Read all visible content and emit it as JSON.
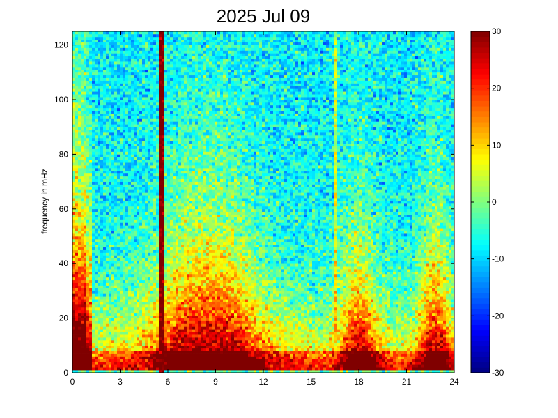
{
  "chart_data": {
    "type": "heatmap",
    "title": "2025 Jul 09",
    "xlabel": "",
    "ylabel": "frequency in mHz",
    "xlim": [
      0,
      24
    ],
    "ylim": [
      0,
      125
    ],
    "xticks": [
      0,
      3,
      6,
      9,
      12,
      15,
      18,
      21,
      24
    ],
    "yticks": [
      0,
      20,
      40,
      60,
      80,
      100,
      120
    ],
    "colorbar": {
      "range": [
        -30,
        30
      ],
      "ticks": [
        30,
        20,
        10,
        0,
        -10,
        -20,
        -30
      ],
      "colormap": "jet"
    },
    "features": {
      "strong_vertical_line_hour": 5.6,
      "faint_vertical_line_hour": 16.6,
      "low_freq_band_mHz": [
        0,
        10
      ]
    }
  },
  "colors": {
    "jet_low": "#00008f",
    "jet_mid": "#00ffff",
    "jet_high": "#800000"
  }
}
